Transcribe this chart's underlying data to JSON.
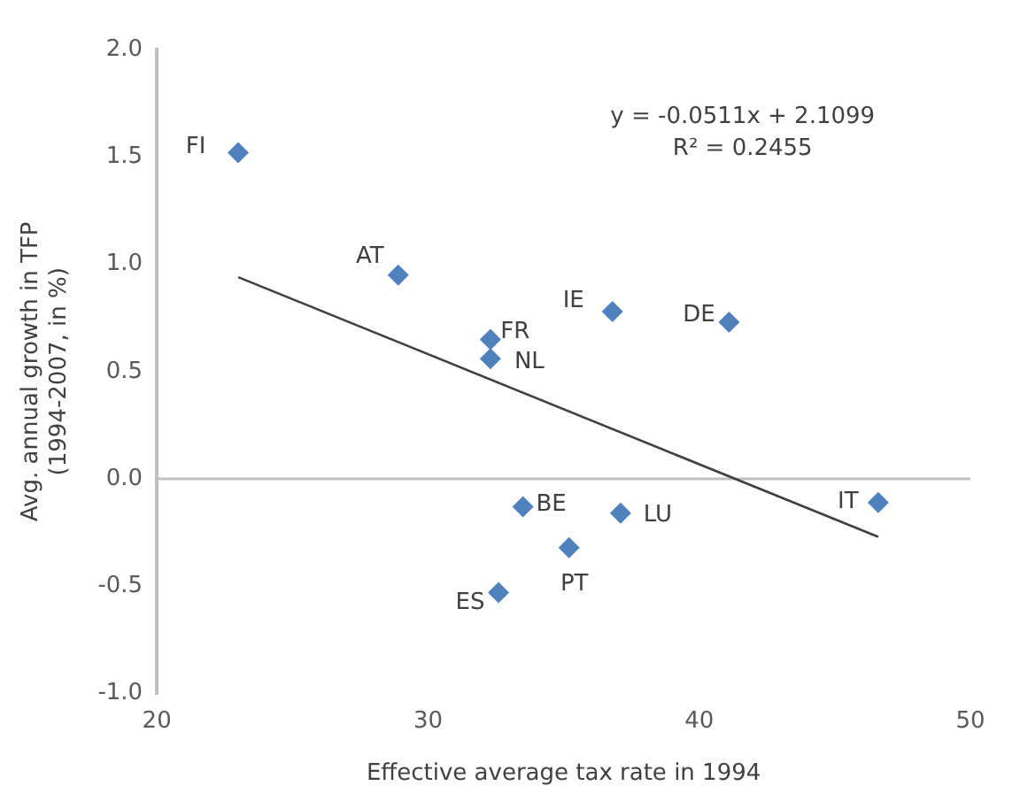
{
  "chart_data": {
    "type": "scatter",
    "xlabel": "Effective average tax rate in 1994",
    "ylabel": "Avg. annual growth in TFP\n(1994-2007, in %)",
    "xlim": [
      20,
      50
    ],
    "xticks": [
      20,
      30,
      40,
      50
    ],
    "ylim": [
      -1,
      2
    ],
    "yticks": [
      {
        "value": -1,
        "label": "-1.0"
      },
      {
        "value": -0.5,
        "label": "-0.5"
      },
      {
        "value": 0,
        "label": "0.0"
      },
      {
        "value": 0.5,
        "label": "0.5"
      },
      {
        "value": 1,
        "label": "1.0"
      },
      {
        "value": 1.5,
        "label": "1.5"
      },
      {
        "value": 2,
        "label": "2.0"
      }
    ],
    "grid": false,
    "legend": false,
    "series": [
      {
        "type": "scatter",
        "marker": "diamond",
        "color": "#4f81bd",
        "x": [
          23.0,
          28.9,
          32.3,
          32.3,
          36.8,
          41.1,
          33.5,
          37.1,
          35.2,
          32.6,
          46.6
        ],
        "values": [
          1.52,
          0.95,
          0.65,
          0.56,
          0.78,
          0.73,
          -0.13,
          -0.16,
          -0.32,
          -0.53,
          -0.11
        ]
      },
      {
        "type": "line",
        "color": "#404040",
        "x": [
          23.0,
          46.6
        ],
        "values": [
          0.94,
          -0.27
        ]
      }
    ],
    "ref_lines": [
      {
        "axis": "y",
        "value": 0,
        "color": "#bfbfbf"
      }
    ],
    "annotations": [
      {
        "text": "FI",
        "x": 23.0,
        "y": 1.52
      },
      {
        "text": "AT",
        "x": 28.9,
        "y": 0.95
      },
      {
        "text": "FR",
        "x": 32.3,
        "y": 0.65
      },
      {
        "text": "NL",
        "x": 32.3,
        "y": 0.56
      },
      {
        "text": "IE",
        "x": 36.8,
        "y": 0.78
      },
      {
        "text": "DE",
        "x": 41.1,
        "y": 0.73
      },
      {
        "text": "BE",
        "x": 33.5,
        "y": -0.13
      },
      {
        "text": "LU",
        "x": 37.1,
        "y": -0.16
      },
      {
        "text": "PT",
        "x": 35.2,
        "y": -0.32
      },
      {
        "text": "ES",
        "x": 32.6,
        "y": -0.53
      },
      {
        "text": "IT",
        "x": 46.6,
        "y": -0.11
      },
      "y = -0.0511x + 2.1099",
      "R² = 0.2455"
    ]
  }
}
